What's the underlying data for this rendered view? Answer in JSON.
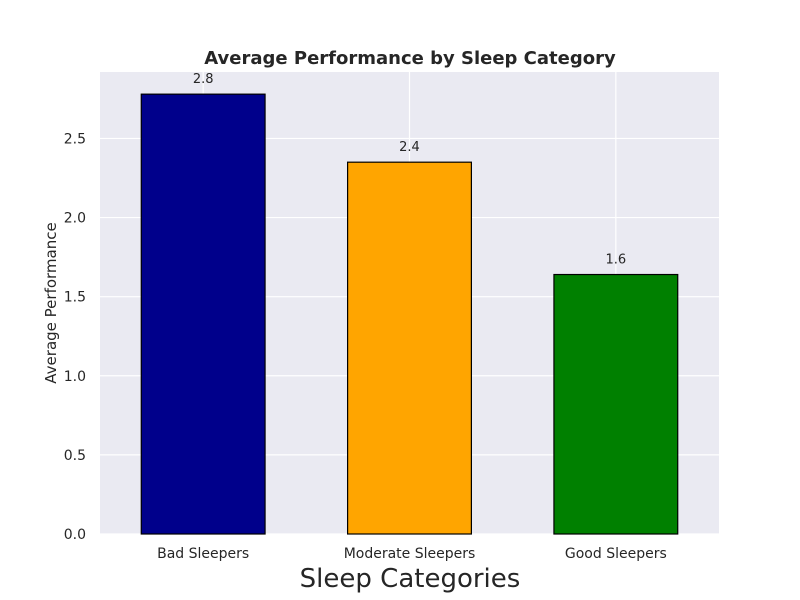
{
  "chart_data": {
    "type": "bar",
    "title": "Average Performance by Sleep Category",
    "xlabel": "Sleep Categories",
    "ylabel": "Average Performance",
    "categories": [
      "Bad Sleepers",
      "Moderate Sleepers",
      "Good Sleepers"
    ],
    "values": [
      2.78,
      2.35,
      1.64
    ],
    "data_labels": [
      "2.8",
      "2.4",
      "1.6"
    ],
    "bar_colors": [
      "#00008b",
      "#ffa500",
      "#008000"
    ],
    "ylim": [
      0,
      2.92
    ],
    "yticks": [
      0.0,
      0.5,
      1.0,
      1.5,
      2.0,
      2.5
    ],
    "ytick_labels": [
      "0.0",
      "0.5",
      "1.0",
      "1.5",
      "2.0",
      "2.5"
    ],
    "grid": true,
    "background_color": "#eaeaf2",
    "legend": "none"
  }
}
